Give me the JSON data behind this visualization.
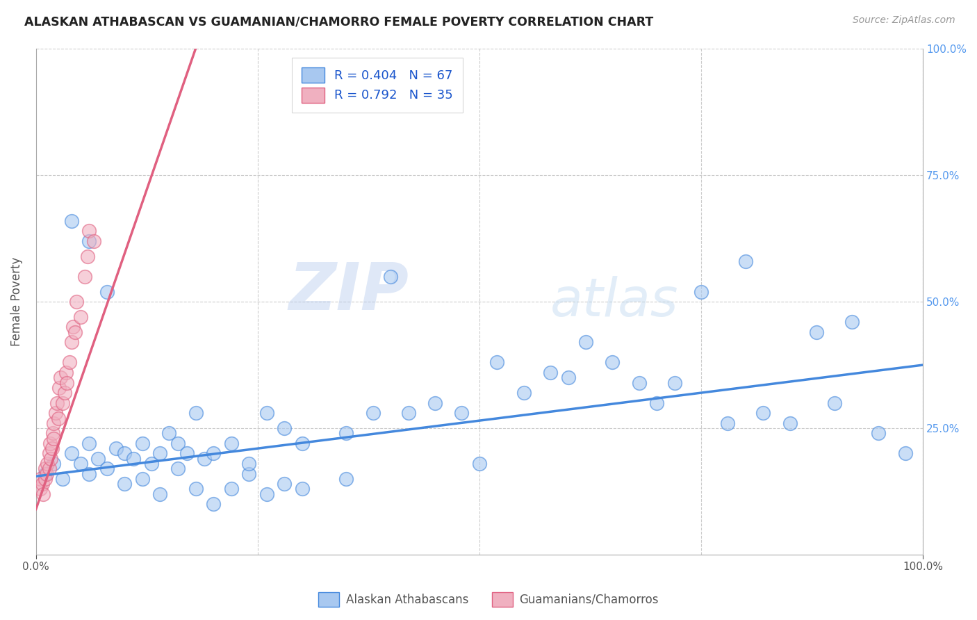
{
  "title": "ALASKAN ATHABASCAN VS GUAMANIAN/CHAMORRO FEMALE POVERTY CORRELATION CHART",
  "source": "Source: ZipAtlas.com",
  "ylabel": "Female Poverty",
  "xlim": [
    0.0,
    1.0
  ],
  "ylim": [
    0.0,
    1.0
  ],
  "legend_label1": "Alaskan Athabascans",
  "legend_label2": "Guamanians/Chamorros",
  "R1": 0.404,
  "N1": 67,
  "R2": 0.792,
  "N2": 35,
  "color1": "#a8c8f0",
  "color2": "#f0b0c0",
  "line_color1": "#4488dd",
  "line_color2": "#e06080",
  "watermark_zip": "ZIP",
  "watermark_atlas": "atlas",
  "background_color": "#ffffff",
  "grid_color": "#cccccc",
  "blue_scatter_x": [
    0.01,
    0.02,
    0.03,
    0.04,
    0.05,
    0.06,
    0.06,
    0.07,
    0.08,
    0.09,
    0.1,
    0.11,
    0.12,
    0.13,
    0.14,
    0.15,
    0.16,
    0.17,
    0.18,
    0.19,
    0.2,
    0.22,
    0.24,
    0.26,
    0.28,
    0.3,
    0.35,
    0.38,
    0.4,
    0.42,
    0.45,
    0.48,
    0.5,
    0.52,
    0.55,
    0.58,
    0.6,
    0.62,
    0.65,
    0.68,
    0.7,
    0.72,
    0.75,
    0.78,
    0.8,
    0.82,
    0.85,
    0.88,
    0.9,
    0.92,
    0.95,
    0.98,
    0.04,
    0.06,
    0.08,
    0.1,
    0.12,
    0.14,
    0.16,
    0.18,
    0.2,
    0.22,
    0.24,
    0.26,
    0.28,
    0.3,
    0.35
  ],
  "blue_scatter_y": [
    0.16,
    0.18,
    0.15,
    0.2,
    0.18,
    0.16,
    0.22,
    0.19,
    0.17,
    0.21,
    0.2,
    0.19,
    0.22,
    0.18,
    0.2,
    0.24,
    0.22,
    0.2,
    0.28,
    0.19,
    0.2,
    0.22,
    0.16,
    0.28,
    0.25,
    0.22,
    0.24,
    0.28,
    0.55,
    0.28,
    0.3,
    0.28,
    0.18,
    0.38,
    0.32,
    0.36,
    0.35,
    0.42,
    0.38,
    0.34,
    0.3,
    0.34,
    0.52,
    0.26,
    0.58,
    0.28,
    0.26,
    0.44,
    0.3,
    0.46,
    0.24,
    0.2,
    0.66,
    0.62,
    0.52,
    0.14,
    0.15,
    0.12,
    0.17,
    0.13,
    0.1,
    0.13,
    0.18,
    0.12,
    0.14,
    0.13,
    0.15
  ],
  "pink_scatter_x": [
    0.005,
    0.005,
    0.007,
    0.008,
    0.01,
    0.01,
    0.012,
    0.013,
    0.015,
    0.015,
    0.016,
    0.017,
    0.018,
    0.019,
    0.02,
    0.02,
    0.022,
    0.024,
    0.025,
    0.026,
    0.028,
    0.03,
    0.032,
    0.034,
    0.035,
    0.038,
    0.04,
    0.042,
    0.044,
    0.046,
    0.05,
    0.055,
    0.058,
    0.06,
    0.065
  ],
  "pink_scatter_y": [
    0.13,
    0.15,
    0.14,
    0.12,
    0.15,
    0.17,
    0.16,
    0.18,
    0.17,
    0.2,
    0.22,
    0.19,
    0.21,
    0.24,
    0.23,
    0.26,
    0.28,
    0.3,
    0.27,
    0.33,
    0.35,
    0.3,
    0.32,
    0.36,
    0.34,
    0.38,
    0.42,
    0.45,
    0.44,
    0.5,
    0.47,
    0.55,
    0.59,
    0.64,
    0.62
  ],
  "blue_line_x": [
    0.0,
    1.0
  ],
  "blue_line_y": [
    0.155,
    0.375
  ],
  "pink_line_x": [
    0.0,
    0.18
  ],
  "pink_line_y": [
    0.09,
    1.0
  ]
}
